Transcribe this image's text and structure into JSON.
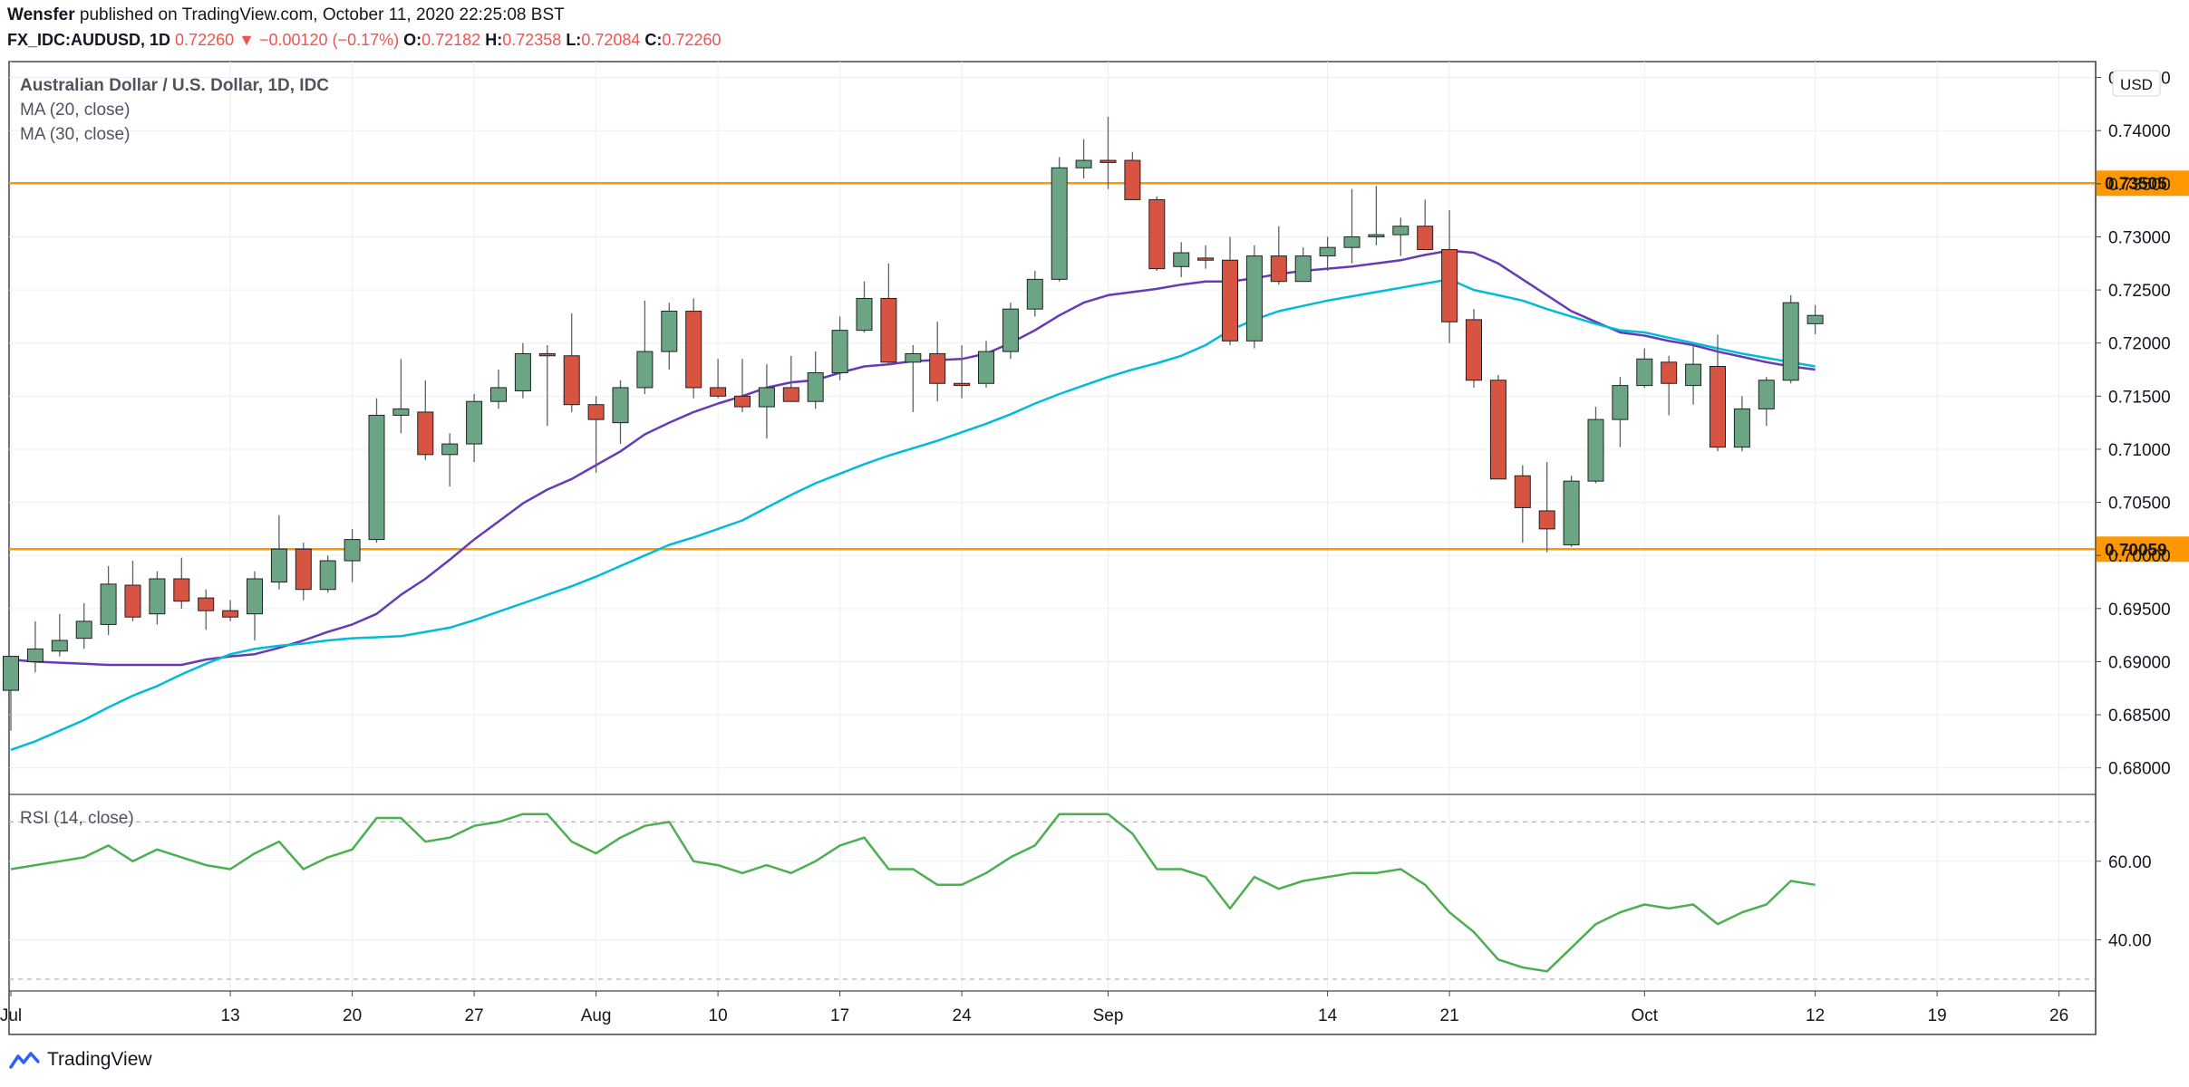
{
  "header": {
    "author": "Wensfer",
    "published_text": "published on TradingView.com, October 11, 2020 22:25:08 BST",
    "symbol": "FX_IDC:AUDUSD, 1D",
    "last": "0.72260",
    "change_arrow": "▼",
    "change": "−0.00120 (−0.17%)",
    "o_label": "O:",
    "o": "0.72182",
    "h_label": "H:",
    "h": "0.72358",
    "l_label": "L:",
    "l": "0.72084",
    "c_label": "C:",
    "c": "0.72260"
  },
  "footer": {
    "brand": "TradingView"
  },
  "chart_data": [
    {
      "type": "candlestick",
      "title": "Australian Dollar / U.S. Dollar, 1D, IDC",
      "currency_label": "USD",
      "ylim": [
        0.6775,
        0.7465
      ],
      "y_ticks": [
        "0.68000",
        "0.68500",
        "0.69000",
        "0.69500",
        "0.70000",
        "0.70500",
        "0.71000",
        "0.71500",
        "0.72000",
        "0.72500",
        "0.73000",
        "0.73500",
        "0.74000",
        "0.74500"
      ],
      "x_tick_labels": [
        {
          "label": "Jul",
          "index": 0
        },
        {
          "label": "13",
          "index": 9
        },
        {
          "label": "20",
          "index": 14
        },
        {
          "label": "27",
          "index": 19
        },
        {
          "label": "Aug",
          "index": 24
        },
        {
          "label": "10",
          "index": 29
        },
        {
          "label": "17",
          "index": 34
        },
        {
          "label": "24",
          "index": 39
        },
        {
          "label": "Sep",
          "index": 45
        },
        {
          "label": "14",
          "index": 54
        },
        {
          "label": "21",
          "index": 59
        },
        {
          "label": "Oct",
          "index": 67
        },
        {
          "label": "12",
          "index": 74
        },
        {
          "label": "19",
          "index": 79
        },
        {
          "label": "26",
          "index": 84
        }
      ],
      "horizontal_levels": [
        {
          "value": 0.73505,
          "label": "0.73505",
          "color": "#ff9800"
        },
        {
          "value": 0.70059,
          "label": "0.70059",
          "color": "#ff9800"
        }
      ],
      "candles": [
        {
          "o": 0.6873,
          "h": 0.6905,
          "l": 0.6835,
          "c": 0.6905
        },
        {
          "o": 0.69,
          "h": 0.6938,
          "l": 0.689,
          "c": 0.6912
        },
        {
          "o": 0.691,
          "h": 0.6945,
          "l": 0.6905,
          "c": 0.692
        },
        {
          "o": 0.6922,
          "h": 0.6955,
          "l": 0.6912,
          "c": 0.6938
        },
        {
          "o": 0.6935,
          "h": 0.699,
          "l": 0.6925,
          "c": 0.6973
        },
        {
          "o": 0.6972,
          "h": 0.6995,
          "l": 0.6938,
          "c": 0.6942
        },
        {
          "o": 0.6945,
          "h": 0.6985,
          "l": 0.6935,
          "c": 0.6978
        },
        {
          "o": 0.6978,
          "h": 0.6998,
          "l": 0.695,
          "c": 0.6957
        },
        {
          "o": 0.696,
          "h": 0.6968,
          "l": 0.693,
          "c": 0.6948
        },
        {
          "o": 0.6948,
          "h": 0.6958,
          "l": 0.6938,
          "c": 0.6942
        },
        {
          "o": 0.6945,
          "h": 0.6985,
          "l": 0.692,
          "c": 0.6978
        },
        {
          "o": 0.6975,
          "h": 0.7038,
          "l": 0.6968,
          "c": 0.7006
        },
        {
          "o": 0.7006,
          "h": 0.7012,
          "l": 0.6958,
          "c": 0.6968
        },
        {
          "o": 0.6968,
          "h": 0.7,
          "l": 0.6965,
          "c": 0.6995
        },
        {
          "o": 0.6995,
          "h": 0.7025,
          "l": 0.6975,
          "c": 0.7015
        },
        {
          "o": 0.7015,
          "h": 0.7148,
          "l": 0.7012,
          "c": 0.7132
        },
        {
          "o": 0.7132,
          "h": 0.7185,
          "l": 0.7115,
          "c": 0.7138
        },
        {
          "o": 0.7135,
          "h": 0.7165,
          "l": 0.709,
          "c": 0.7095
        },
        {
          "o": 0.7095,
          "h": 0.7115,
          "l": 0.7065,
          "c": 0.7105
        },
        {
          "o": 0.7105,
          "h": 0.7152,
          "l": 0.7088,
          "c": 0.7145
        },
        {
          "o": 0.7145,
          "h": 0.7175,
          "l": 0.7138,
          "c": 0.7158
        },
        {
          "o": 0.7155,
          "h": 0.72,
          "l": 0.7148,
          "c": 0.719
        },
        {
          "o": 0.719,
          "h": 0.7198,
          "l": 0.7122,
          "c": 0.7188
        },
        {
          "o": 0.7188,
          "h": 0.7228,
          "l": 0.7135,
          "c": 0.7142
        },
        {
          "o": 0.7142,
          "h": 0.715,
          "l": 0.7078,
          "c": 0.7128
        },
        {
          "o": 0.7125,
          "h": 0.7165,
          "l": 0.7105,
          "c": 0.7158
        },
        {
          "o": 0.7158,
          "h": 0.724,
          "l": 0.7152,
          "c": 0.7192
        },
        {
          "o": 0.7192,
          "h": 0.7238,
          "l": 0.7175,
          "c": 0.723
        },
        {
          "o": 0.723,
          "h": 0.7242,
          "l": 0.7148,
          "c": 0.7158
        },
        {
          "o": 0.7158,
          "h": 0.7185,
          "l": 0.7148,
          "c": 0.715
        },
        {
          "o": 0.715,
          "h": 0.7185,
          "l": 0.7135,
          "c": 0.714
        },
        {
          "o": 0.714,
          "h": 0.718,
          "l": 0.711,
          "c": 0.7158
        },
        {
          "o": 0.7158,
          "h": 0.7188,
          "l": 0.7145,
          "c": 0.7145
        },
        {
          "o": 0.7145,
          "h": 0.7192,
          "l": 0.7138,
          "c": 0.7172
        },
        {
          "o": 0.7172,
          "h": 0.7225,
          "l": 0.7165,
          "c": 0.7212
        },
        {
          "o": 0.7212,
          "h": 0.7258,
          "l": 0.721,
          "c": 0.7242
        },
        {
          "o": 0.7242,
          "h": 0.7275,
          "l": 0.718,
          "c": 0.7182
        },
        {
          "o": 0.7182,
          "h": 0.7198,
          "l": 0.7135,
          "c": 0.719
        },
        {
          "o": 0.719,
          "h": 0.722,
          "l": 0.7145,
          "c": 0.7162
        },
        {
          "o": 0.7162,
          "h": 0.7198,
          "l": 0.7148,
          "c": 0.716
        },
        {
          "o": 0.7162,
          "h": 0.7202,
          "l": 0.7158,
          "c": 0.7192
        },
        {
          "o": 0.7192,
          "h": 0.7238,
          "l": 0.7185,
          "c": 0.7232
        },
        {
          "o": 0.7232,
          "h": 0.7268,
          "l": 0.7225,
          "c": 0.726
        },
        {
          "o": 0.726,
          "h": 0.7375,
          "l": 0.7258,
          "c": 0.7365
        },
        {
          "o": 0.7365,
          "h": 0.7392,
          "l": 0.7355,
          "c": 0.7372
        },
        {
          "o": 0.7372,
          "h": 0.7413,
          "l": 0.7345,
          "c": 0.737
        },
        {
          "o": 0.7372,
          "h": 0.738,
          "l": 0.7335,
          "c": 0.7335
        },
        {
          "o": 0.7335,
          "h": 0.7338,
          "l": 0.7268,
          "c": 0.727
        },
        {
          "o": 0.7272,
          "h": 0.7295,
          "l": 0.7262,
          "c": 0.7285
        },
        {
          "o": 0.728,
          "h": 0.7292,
          "l": 0.727,
          "c": 0.7278
        },
        {
          "o": 0.7278,
          "h": 0.73,
          "l": 0.7198,
          "c": 0.7202
        },
        {
          "o": 0.7202,
          "h": 0.7292,
          "l": 0.7195,
          "c": 0.7282
        },
        {
          "o": 0.7282,
          "h": 0.731,
          "l": 0.7255,
          "c": 0.7258
        },
        {
          "o": 0.7258,
          "h": 0.729,
          "l": 0.7258,
          "c": 0.7282
        },
        {
          "o": 0.7282,
          "h": 0.73,
          "l": 0.7268,
          "c": 0.729
        },
        {
          "o": 0.729,
          "h": 0.7345,
          "l": 0.7275,
          "c": 0.73
        },
        {
          "o": 0.73,
          "h": 0.7348,
          "l": 0.7292,
          "c": 0.7302
        },
        {
          "o": 0.7302,
          "h": 0.7318,
          "l": 0.7282,
          "c": 0.731
        },
        {
          "o": 0.731,
          "h": 0.7335,
          "l": 0.7288,
          "c": 0.7288
        },
        {
          "o": 0.7288,
          "h": 0.7325,
          "l": 0.72,
          "c": 0.722
        },
        {
          "o": 0.7222,
          "h": 0.7232,
          "l": 0.7158,
          "c": 0.7165
        },
        {
          "o": 0.7165,
          "h": 0.717,
          "l": 0.7072,
          "c": 0.7072
        },
        {
          "o": 0.7075,
          "h": 0.7085,
          "l": 0.7012,
          "c": 0.7045
        },
        {
          "o": 0.7042,
          "h": 0.7088,
          "l": 0.7003,
          "c": 0.7025
        },
        {
          "o": 0.701,
          "h": 0.7075,
          "l": 0.7008,
          "c": 0.707
        },
        {
          "o": 0.707,
          "h": 0.714,
          "l": 0.7068,
          "c": 0.7128
        },
        {
          "o": 0.7128,
          "h": 0.7168,
          "l": 0.7102,
          "c": 0.716
        },
        {
          "o": 0.716,
          "h": 0.7195,
          "l": 0.7158,
          "c": 0.7185
        },
        {
          "o": 0.7182,
          "h": 0.7188,
          "l": 0.7132,
          "c": 0.7162
        },
        {
          "o": 0.716,
          "h": 0.7198,
          "l": 0.7142,
          "c": 0.718
        },
        {
          "o": 0.7178,
          "h": 0.7208,
          "l": 0.7098,
          "c": 0.7102
        },
        {
          "o": 0.7102,
          "h": 0.715,
          "l": 0.7098,
          "c": 0.7138
        },
        {
          "o": 0.7138,
          "h": 0.7168,
          "l": 0.7122,
          "c": 0.7165
        },
        {
          "o": 0.7165,
          "h": 0.7245,
          "l": 0.7162,
          "c": 0.7238
        },
        {
          "o": 0.72182,
          "h": 0.72358,
          "l": 0.72084,
          "c": 0.7226
        }
      ],
      "series": [
        {
          "name": "MA (20, close)",
          "color": "#673ab7",
          "values": [
            0.6902,
            0.69,
            0.6899,
            0.6898,
            0.6897,
            0.6897,
            0.6897,
            0.6897,
            0.6902,
            0.6905,
            0.6907,
            0.6913,
            0.692,
            0.6928,
            0.6935,
            0.6945,
            0.6963,
            0.6978,
            0.6996,
            0.7015,
            0.7032,
            0.7049,
            0.7062,
            0.7072,
            0.7085,
            0.7098,
            0.7114,
            0.7125,
            0.7135,
            0.7143,
            0.715,
            0.7158,
            0.7163,
            0.7165,
            0.7172,
            0.7178,
            0.718,
            0.7183,
            0.7184,
            0.7185,
            0.719,
            0.72,
            0.7212,
            0.7226,
            0.7238,
            0.7245,
            0.7248,
            0.7251,
            0.7255,
            0.7258,
            0.7258,
            0.7261,
            0.7265,
            0.7268,
            0.727,
            0.7272,
            0.7275,
            0.7278,
            0.7283,
            0.7287,
            0.7285,
            0.7275,
            0.726,
            0.7245,
            0.723,
            0.722,
            0.721,
            0.7207,
            0.7202,
            0.7198,
            0.7192,
            0.7187,
            0.7182,
            0.7178,
            0.7175
          ]
        },
        {
          "name": "MA (30, close)",
          "color": "#00bcd4",
          "values": [
            0.6817,
            0.6825,
            0.6835,
            0.6845,
            0.6857,
            0.6868,
            0.6877,
            0.6888,
            0.6898,
            0.6907,
            0.6912,
            0.6915,
            0.6917,
            0.692,
            0.6922,
            0.6923,
            0.6924,
            0.6928,
            0.6932,
            0.6939,
            0.6947,
            0.6955,
            0.6963,
            0.6971,
            0.698,
            0.699,
            0.7,
            0.701,
            0.7017,
            0.7025,
            0.7033,
            0.7045,
            0.7057,
            0.7068,
            0.7077,
            0.7086,
            0.7094,
            0.7101,
            0.7108,
            0.7116,
            0.7124,
            0.7133,
            0.7143,
            0.7152,
            0.716,
            0.7168,
            0.7175,
            0.7181,
            0.7188,
            0.7198,
            0.7212,
            0.7222,
            0.723,
            0.7235,
            0.724,
            0.7244,
            0.7248,
            0.7252,
            0.7256,
            0.726,
            0.725,
            0.7245,
            0.724,
            0.7232,
            0.7225,
            0.7218,
            0.7212,
            0.721,
            0.7205,
            0.72,
            0.7195,
            0.719,
            0.7186,
            0.7182,
            0.7178
          ]
        }
      ]
    },
    {
      "type": "line",
      "title": "RSI (14, close)",
      "ylim": [
        27,
        77
      ],
      "y_ticks": [
        "40.00",
        "60.00"
      ],
      "bands": [
        30,
        70
      ],
      "series": [
        {
          "name": "RSI (14, close)",
          "color": "#4caf50",
          "values": [
            58,
            59,
            60,
            61,
            64,
            60,
            63,
            61,
            59,
            58,
            62,
            65,
            58,
            61,
            63,
            71,
            71,
            65,
            66,
            69,
            70,
            72,
            72,
            65,
            62,
            66,
            69,
            70,
            60,
            59,
            57,
            59,
            57,
            60,
            64,
            66,
            58,
            58,
            54,
            54,
            57,
            61,
            64,
            72,
            72,
            72,
            67,
            58,
            58,
            56,
            48,
            56,
            53,
            55,
            56,
            57,
            57,
            58,
            54,
            47,
            42,
            35,
            33,
            32,
            38,
            44,
            47,
            49,
            48,
            49,
            44,
            47,
            49,
            55,
            54
          ]
        }
      ]
    }
  ]
}
